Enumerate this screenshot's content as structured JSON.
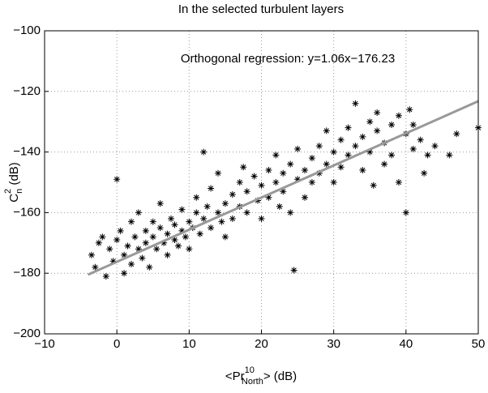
{
  "chart_data": {
    "type": "scatter",
    "title": "In the selected turbulent layers",
    "annotation": "Orthogonal regression: y=1.06x−176.23",
    "xlabel": {
      "pre": "<Pr",
      "sup": "10",
      "sub": "North",
      "post": "> (dB)"
    },
    "ylabel": {
      "pre": "C",
      "sup": "2",
      "sub": "n",
      "post": " (dB)"
    },
    "xlim": [
      -10,
      50
    ],
    "xticks": [
      {
        "value": -10,
        "label": "−10"
      },
      0,
      10,
      20,
      30,
      40,
      50
    ],
    "ylim": [
      -200,
      -100
    ],
    "yticks": [
      {
        "value": -200,
        "label": "−200"
      },
      {
        "value": -180,
        "label": "−180"
      },
      {
        "value": -160,
        "label": "−160"
      },
      {
        "value": -140,
        "label": "−140"
      },
      {
        "value": -120,
        "label": "−120"
      },
      {
        "value": -100,
        "label": "−100"
      }
    ],
    "grid": true,
    "color": "#000000",
    "x": [
      -3.5,
      -3,
      -2.5,
      -2,
      -1.5,
      -1,
      -0.5,
      0,
      0,
      0.5,
      1,
      1,
      1.5,
      2,
      2,
      2.5,
      3,
      3,
      3.5,
      4,
      4,
      4.5,
      5,
      5,
      5.5,
      6,
      6,
      6.5,
      7,
      7,
      7.5,
      8,
      8,
      8.5,
      9,
      9,
      9.5,
      10,
      10,
      10.5,
      11,
      11,
      11.5,
      12,
      12,
      12.5,
      13,
      13,
      14,
      14,
      14.5,
      15,
      15,
      16,
      16,
      17,
      17,
      17.5,
      18,
      18,
      19,
      19.5,
      20,
      20,
      21,
      21,
      22,
      22,
      22.5,
      23,
      23,
      24,
      24,
      24.5,
      25,
      25,
      26,
      26,
      27,
      27,
      28,
      28,
      29,
      29,
      30,
      30,
      31,
      31,
      32,
      32,
      33,
      33,
      34,
      34,
      35,
      35,
      35.5,
      36,
      36,
      37,
      37,
      38,
      38,
      39,
      39,
      40,
      40,
      40.5,
      41,
      41,
      42,
      42.5,
      43,
      44,
      46,
      47,
      50
    ],
    "values": [
      -174,
      -178,
      -170,
      -168,
      -181,
      -172,
      -176,
      -169,
      -149,
      -166,
      -174,
      -180,
      -171,
      -163,
      -177,
      -168,
      -172,
      -160,
      -175,
      -166,
      -170,
      -178,
      -163,
      -168,
      -172,
      -165,
      -157,
      -170,
      -167,
      -174,
      -162,
      -169,
      -164,
      -171,
      -166,
      -159,
      -168,
      -163,
      -172,
      -165,
      -160,
      -155,
      -167,
      -162,
      -140,
      -158,
      -165,
      -152,
      -160,
      -147,
      -163,
      -157,
      -168,
      -154,
      -162,
      -150,
      -158,
      -145,
      -160,
      -153,
      -148,
      -156,
      -151,
      -162,
      -146,
      -155,
      -150,
      -141,
      -158,
      -147,
      -153,
      -144,
      -160,
      -179,
      -149,
      -139,
      -146,
      -155,
      -142,
      -150,
      -138,
      -147,
      -144,
      -133,
      -140,
      -150,
      -136,
      -145,
      -132,
      -141,
      -138,
      -124,
      -135,
      -146,
      -130,
      -140,
      -151,
      -133,
      -127,
      -137,
      -144,
      -131,
      -141,
      -128,
      -150,
      -134,
      -160,
      -126,
      -139,
      -131,
      -136,
      -147,
      -141,
      -138,
      -141,
      -134,
      -132
    ],
    "fit": {
      "x": [
        -4,
        50
      ],
      "values": [
        -180.47,
        -123.23
      ],
      "color": "#999999"
    }
  }
}
